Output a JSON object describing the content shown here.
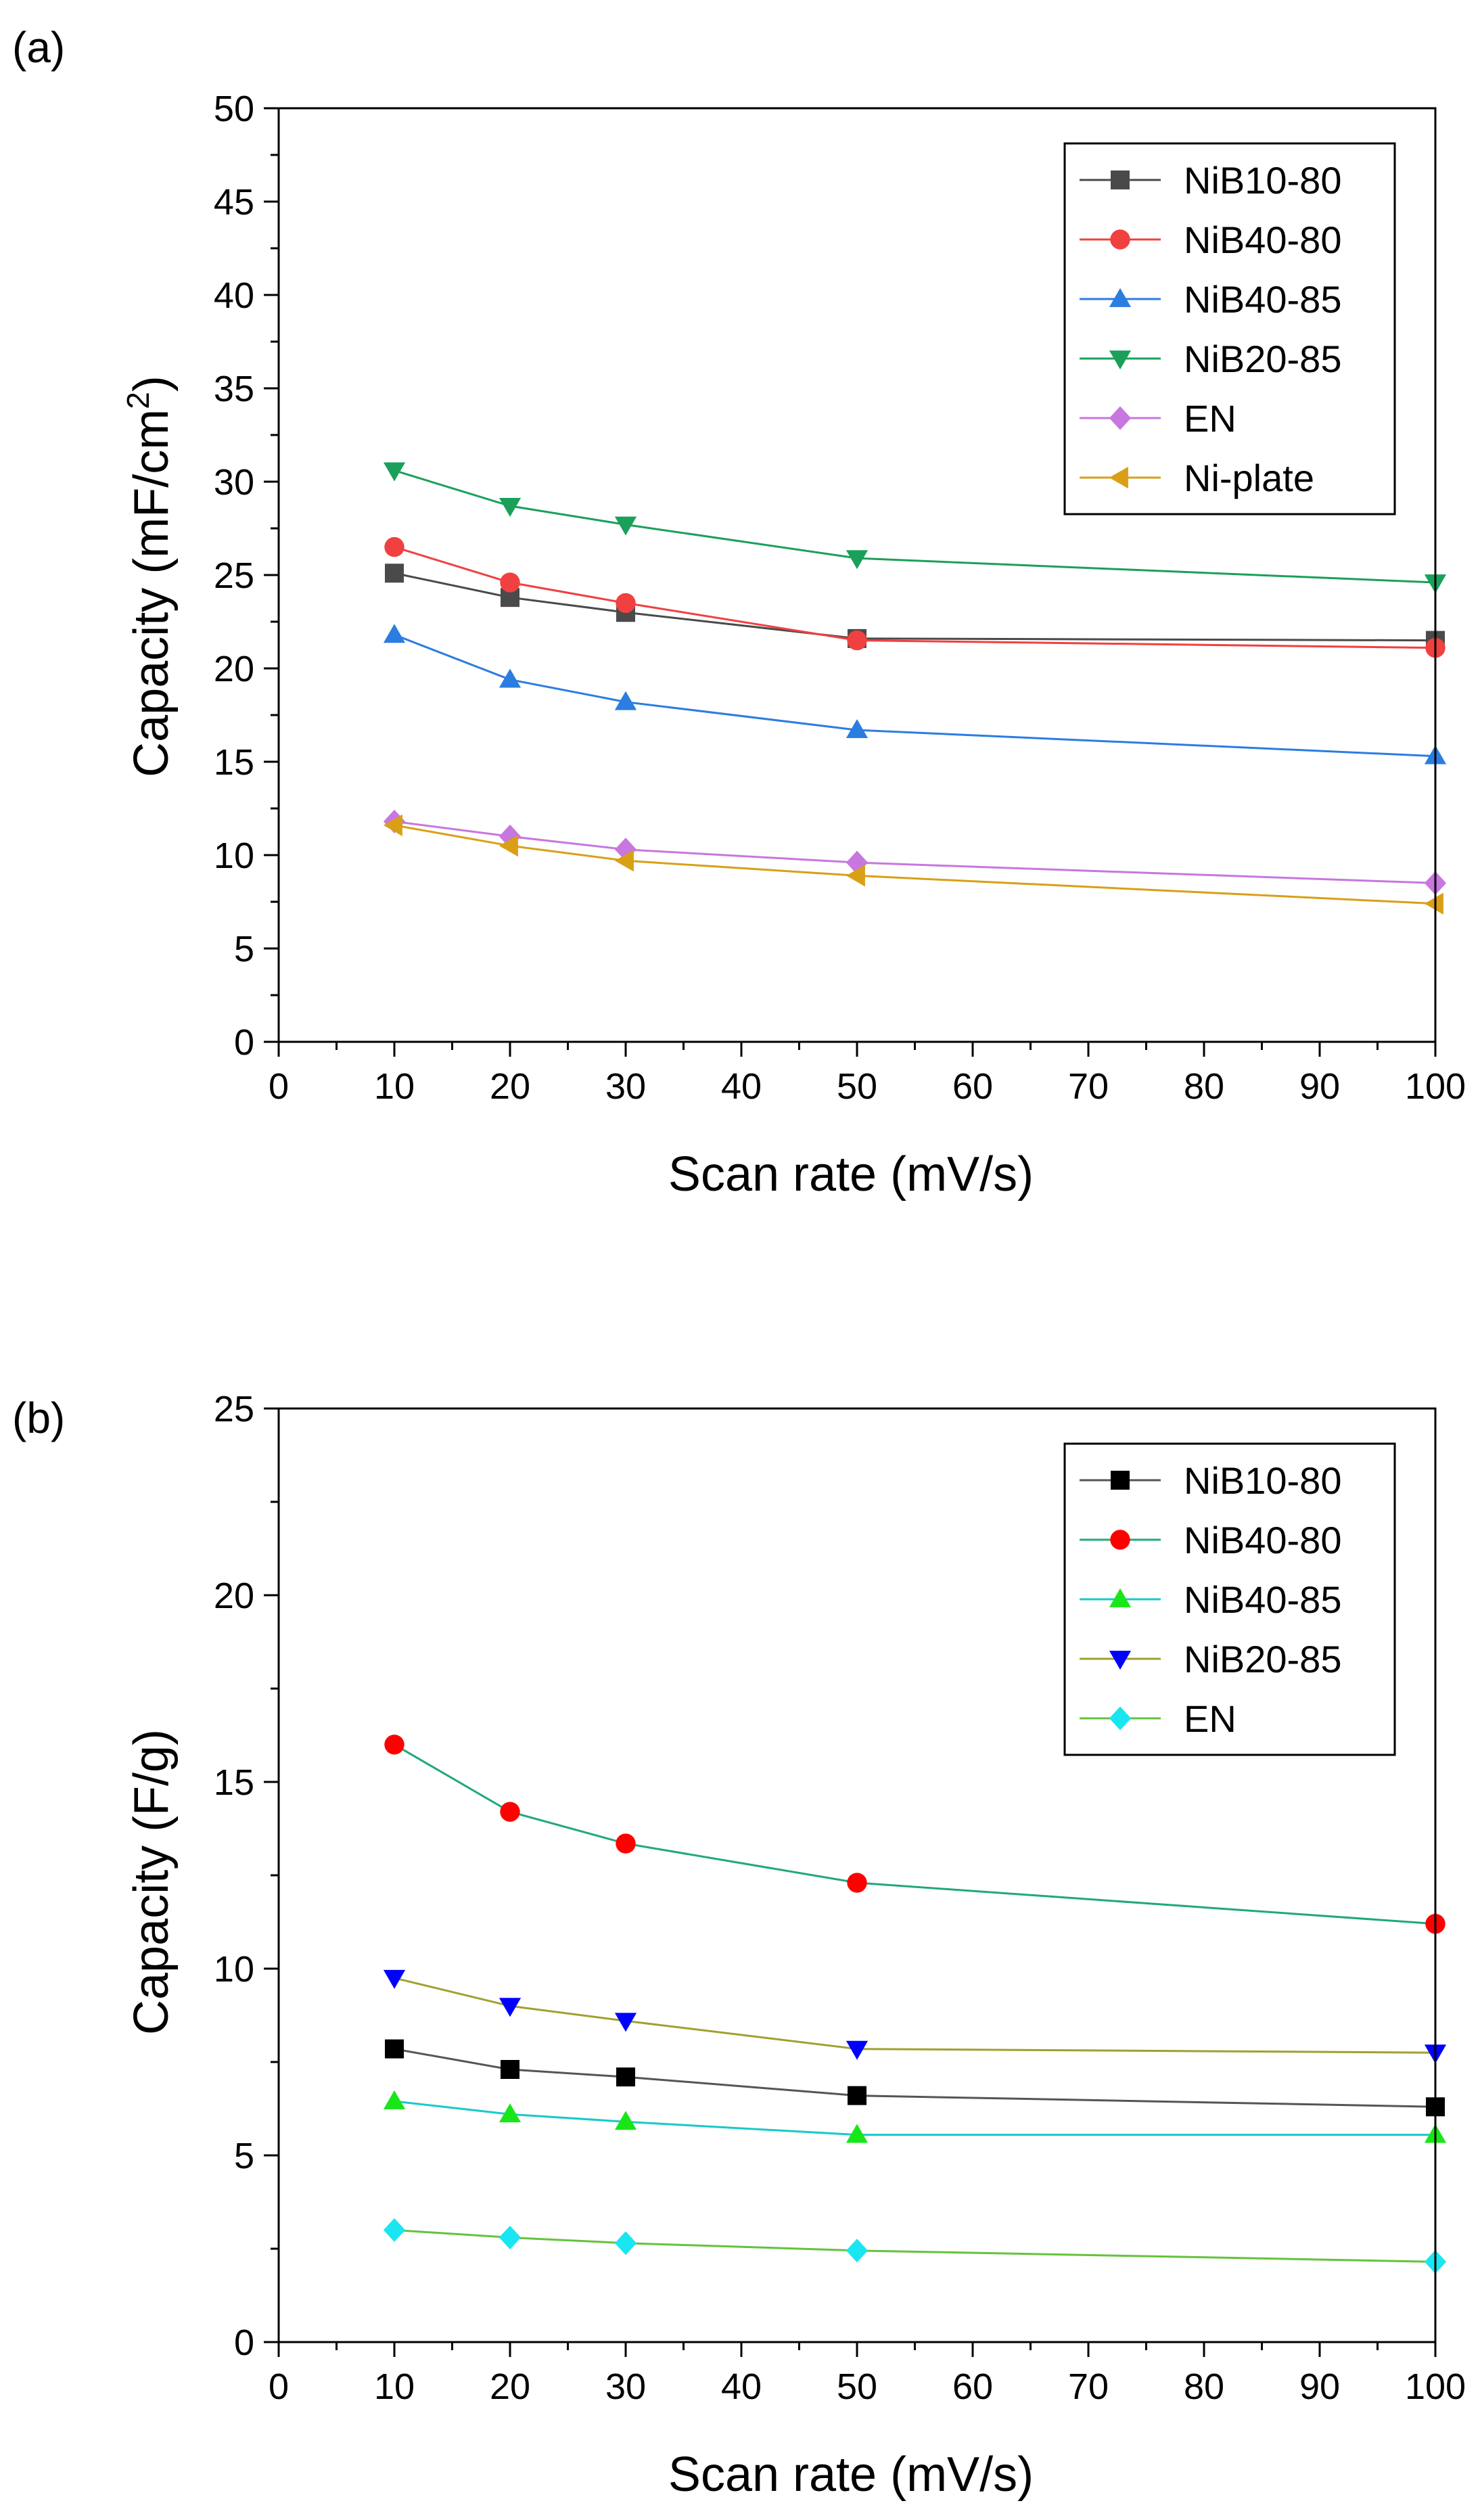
{
  "panels": [
    {
      "panel_label": "(a)",
      "xlabel": "Scan rate (mV/s)",
      "ylabel_main": "Capacity (mF/cm",
      "ylabel_sup": "2",
      "ylabel_end": ")",
      "xtick_labels": [
        "0",
        "10",
        "20",
        "30",
        "40",
        "50",
        "60",
        "70",
        "80",
        "90",
        "100"
      ],
      "ytick_labels": [
        "0",
        "5",
        "10",
        "15",
        "20",
        "25",
        "30",
        "35",
        "40",
        "45",
        "50"
      ]
    },
    {
      "panel_label": "(b)",
      "xlabel": "Scan rate (mV/s)",
      "ylabel_main": "Capacity (F/g)",
      "ylabel_sup": "",
      "ylabel_end": "",
      "xtick_labels": [
        "0",
        "10",
        "20",
        "30",
        "40",
        "50",
        "60",
        "70",
        "80",
        "90",
        "100"
      ],
      "ytick_labels": [
        "0",
        "5",
        "10",
        "15",
        "20",
        "25"
      ]
    }
  ],
  "chart_data": [
    {
      "type": "line",
      "title": "(a)",
      "xlabel": "Scan rate (mV/s)",
      "ylabel": "Capacity (mF/cm2)",
      "xlim": [
        0,
        100
      ],
      "ylim": [
        0,
        50
      ],
      "xticks": [
        0,
        10,
        20,
        30,
        40,
        50,
        60,
        70,
        80,
        90,
        100
      ],
      "yticks": [
        0,
        5,
        10,
        15,
        20,
        25,
        30,
        35,
        40,
        45,
        50
      ],
      "legend_position": "top-right",
      "x": [
        10,
        20,
        30,
        50,
        100
      ],
      "series": [
        {
          "name": "NiB10-80",
          "marker": "square",
          "line_color": "#4a4a4a",
          "marker_color": "#4a4a4a",
          "values": [
            25.1,
            23.8,
            23.0,
            21.6,
            21.5
          ]
        },
        {
          "name": "NiB40-80",
          "marker": "circle",
          "line_color": "#f04040",
          "marker_color": "#f04040",
          "values": [
            26.5,
            24.6,
            23.5,
            21.5,
            21.1
          ]
        },
        {
          "name": "NiB40-85",
          "marker": "triangle-up",
          "line_color": "#2b7de0",
          "marker_color": "#2b7de0",
          "values": [
            21.8,
            19.4,
            18.2,
            16.7,
            15.3
          ]
        },
        {
          "name": "NiB20-85",
          "marker": "triangle-down",
          "line_color": "#1aa05a",
          "marker_color": "#1aa05a",
          "values": [
            30.6,
            28.7,
            27.7,
            25.9,
            24.6
          ]
        },
        {
          "name": "EN",
          "marker": "diamond",
          "line_color": "#c876e0",
          "marker_color": "#c876e0",
          "values": [
            11.8,
            11.0,
            10.3,
            9.6,
            8.5
          ]
        },
        {
          "name": "Ni-plate",
          "marker": "triangle-left",
          "line_color": "#d9a016",
          "marker_color": "#d9a016",
          "values": [
            11.6,
            10.5,
            9.7,
            8.9,
            7.4
          ]
        }
      ]
    },
    {
      "type": "line",
      "title": "(b)",
      "xlabel": "Scan rate (mV/s)",
      "ylabel": "Capacity (F/g)",
      "xlim": [
        0,
        100
      ],
      "ylim": [
        0,
        25
      ],
      "xticks": [
        0,
        10,
        20,
        30,
        40,
        50,
        60,
        70,
        80,
        90,
        100
      ],
      "yticks": [
        0,
        5,
        10,
        15,
        20,
        25
      ],
      "legend_position": "top-right",
      "x": [
        10,
        20,
        30,
        50,
        100
      ],
      "series": [
        {
          "name": "NiB10-80",
          "marker": "square",
          "line_color": "#555555",
          "marker_color": "#000000",
          "values": [
            7.85,
            7.3,
            7.1,
            6.6,
            6.3
          ]
        },
        {
          "name": "NiB40-80",
          "marker": "circle",
          "line_color": "#22a87a",
          "marker_color": "#ff0000",
          "values": [
            16.0,
            14.2,
            13.35,
            12.3,
            11.2
          ]
        },
        {
          "name": "NiB40-85",
          "marker": "triangle-up",
          "line_color": "#19c9c9",
          "marker_color": "#19e619",
          "values": [
            6.45,
            6.1,
            5.9,
            5.55,
            5.55
          ]
        },
        {
          "name": "NiB20-85",
          "marker": "triangle-down",
          "line_color": "#a0a030",
          "marker_color": "#0000ff",
          "values": [
            9.75,
            9.0,
            8.6,
            7.85,
            7.75
          ]
        },
        {
          "name": "EN",
          "marker": "diamond",
          "line_color": "#66c23a",
          "marker_color": "#19e6f0",
          "values": [
            3.0,
            2.8,
            2.65,
            2.45,
            2.15
          ]
        }
      ]
    }
  ]
}
